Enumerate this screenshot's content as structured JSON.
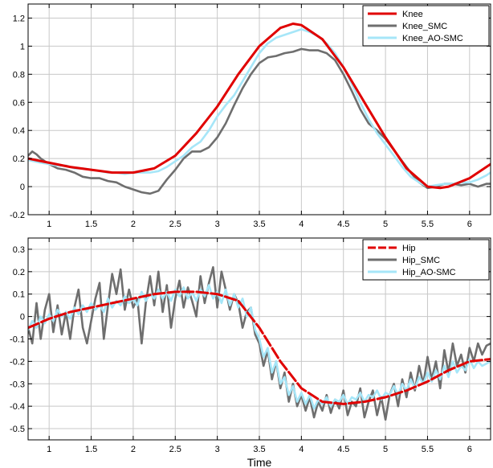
{
  "colors": {
    "reference": "#e00000",
    "smc": "#6e6e6e",
    "ao_smc": "#a6e6f8",
    "grid": "#c8c8c8",
    "axis": "#000000"
  },
  "chart_data": [
    {
      "type": "line",
      "xlabel": "",
      "ylabel": "",
      "xlim": [
        0.75,
        6.25
      ],
      "ylim": [
        -0.2,
        1.3
      ],
      "xticks": [
        1,
        1.5,
        2,
        2.5,
        3,
        3.5,
        4,
        4.5,
        5,
        5.5,
        6
      ],
      "xtick_labels": [
        "1",
        "1.5",
        "2",
        "2.5",
        "3",
        "3.5",
        "4",
        "4.5",
        "5",
        "5.5",
        "6"
      ],
      "yticks": [
        -0.2,
        0,
        0.2,
        0.4,
        0.6,
        0.8,
        1,
        1.2
      ],
      "ytick_labels": [
        "-0.2",
        "0",
        "0.2",
        "0.4",
        "0.6",
        "0.8",
        "1",
        "1.2"
      ],
      "grid": true,
      "legend_position": "top-right",
      "series": [
        {
          "name": "Knee",
          "color": "#e00000",
          "x": [
            0.75,
            1.0,
            1.25,
            1.5,
            1.75,
            2.0,
            2.25,
            2.5,
            2.75,
            3.0,
            3.25,
            3.5,
            3.75,
            3.9,
            4.0,
            4.25,
            4.5,
            4.75,
            5.0,
            5.25,
            5.5,
            5.65,
            5.75,
            6.0,
            6.25
          ],
          "y": [
            0.2,
            0.17,
            0.14,
            0.12,
            0.1,
            0.1,
            0.13,
            0.22,
            0.38,
            0.57,
            0.8,
            1.0,
            1.13,
            1.16,
            1.15,
            1.05,
            0.85,
            0.6,
            0.35,
            0.13,
            0.0,
            -0.01,
            0.0,
            0.06,
            0.16
          ]
        },
        {
          "name": "Knee_SMC",
          "color": "#6e6e6e",
          "x": [
            0.75,
            0.8,
            0.85,
            0.9,
            1.0,
            1.1,
            1.2,
            1.3,
            1.4,
            1.5,
            1.6,
            1.7,
            1.8,
            1.9,
            2.0,
            2.1,
            2.2,
            2.3,
            2.4,
            2.5,
            2.6,
            2.7,
            2.8,
            2.9,
            3.0,
            3.1,
            3.2,
            3.3,
            3.4,
            3.5,
            3.6,
            3.7,
            3.8,
            3.9,
            4.0,
            4.1,
            4.2,
            4.3,
            4.4,
            4.5,
            4.6,
            4.7,
            4.8,
            4.9,
            5.0,
            5.1,
            5.2,
            5.3,
            5.4,
            5.5,
            5.6,
            5.7,
            5.8,
            5.9,
            6.0,
            6.1,
            6.2,
            6.25
          ],
          "y": [
            0.22,
            0.25,
            0.23,
            0.2,
            0.16,
            0.13,
            0.12,
            0.1,
            0.07,
            0.06,
            0.06,
            0.04,
            0.03,
            0.0,
            -0.02,
            -0.04,
            -0.05,
            -0.03,
            0.05,
            0.12,
            0.2,
            0.25,
            0.25,
            0.28,
            0.35,
            0.45,
            0.58,
            0.7,
            0.8,
            0.88,
            0.92,
            0.93,
            0.95,
            0.96,
            0.98,
            0.97,
            0.97,
            0.95,
            0.9,
            0.8,
            0.68,
            0.55,
            0.45,
            0.4,
            0.34,
            0.26,
            0.18,
            0.1,
            0.03,
            -0.01,
            0.0,
            0.02,
            0.02,
            0.01,
            0.02,
            0.0,
            0.02,
            0.02
          ]
        },
        {
          "name": "Knee_AO-SMC",
          "color": "#a6e6f8",
          "x": [
            0.75,
            0.9,
            1.0,
            1.1,
            1.2,
            1.3,
            1.4,
            1.5,
            1.6,
            1.7,
            1.8,
            1.9,
            2.0,
            2.1,
            2.2,
            2.3,
            2.4,
            2.5,
            2.6,
            2.7,
            2.8,
            2.9,
            3.0,
            3.1,
            3.2,
            3.3,
            3.4,
            3.5,
            3.6,
            3.7,
            3.8,
            3.9,
            4.0,
            4.1,
            4.2,
            4.3,
            4.4,
            4.5,
            4.6,
            4.7,
            4.8,
            4.9,
            5.0,
            5.1,
            5.2,
            5.3,
            5.4,
            5.5,
            5.6,
            5.7,
            5.8,
            5.9,
            6.0,
            6.1,
            6.2,
            6.25
          ],
          "y": [
            0.19,
            0.17,
            0.16,
            0.15,
            0.15,
            0.13,
            0.13,
            0.12,
            0.11,
            0.1,
            0.1,
            0.09,
            0.1,
            0.1,
            0.1,
            0.11,
            0.14,
            0.18,
            0.22,
            0.28,
            0.32,
            0.4,
            0.5,
            0.58,
            0.65,
            0.75,
            0.85,
            0.95,
            1.02,
            1.06,
            1.08,
            1.1,
            1.12,
            1.1,
            1.07,
            1.02,
            0.95,
            0.85,
            0.73,
            0.6,
            0.48,
            0.38,
            0.3,
            0.22,
            0.14,
            0.07,
            0.03,
            0.0,
            0.01,
            0.02,
            0.02,
            0.03,
            0.03,
            0.05,
            0.08,
            0.1
          ]
        }
      ]
    },
    {
      "type": "line",
      "xlabel": "Time",
      "ylabel": "",
      "xlim": [
        0.75,
        6.25
      ],
      "ylim": [
        -0.55,
        0.35
      ],
      "xticks": [
        1,
        1.5,
        2,
        2.5,
        3,
        3.5,
        4,
        4.5,
        5,
        5.5,
        6
      ],
      "xtick_labels": [
        "1",
        "1.5",
        "2",
        "2.5",
        "3",
        "3.5",
        "4",
        "4.5",
        "5",
        "5.5",
        "6"
      ],
      "yticks": [
        -0.5,
        -0.4,
        -0.3,
        -0.2,
        -0.1,
        0,
        0.1,
        0.2,
        0.3
      ],
      "ytick_labels": [
        "-0.5",
        "-0.4",
        "-0.3",
        "-0.2",
        "-0.1",
        "0",
        "0.1",
        "0.2",
        "0.3"
      ],
      "grid": true,
      "legend_position": "top-right",
      "series": [
        {
          "name": "Hip",
          "color": "#e00000",
          "x": [
            0.75,
            1.0,
            1.25,
            1.5,
            1.75,
            2.0,
            2.25,
            2.5,
            2.75,
            3.0,
            3.25,
            3.5,
            3.75,
            4.0,
            4.25,
            4.5,
            4.75,
            5.0,
            5.25,
            5.5,
            5.75,
            6.0,
            6.25
          ],
          "y": [
            -0.05,
            -0.01,
            0.02,
            0.04,
            0.06,
            0.08,
            0.1,
            0.11,
            0.11,
            0.1,
            0.07,
            -0.05,
            -0.2,
            -0.32,
            -0.38,
            -0.39,
            -0.38,
            -0.36,
            -0.33,
            -0.29,
            -0.24,
            -0.2,
            -0.19
          ]
        },
        {
          "name": "Hip_SMC",
          "color": "#6e6e6e",
          "x": [
            0.75,
            0.8,
            0.85,
            0.9,
            0.95,
            1.0,
            1.05,
            1.1,
            1.15,
            1.2,
            1.25,
            1.3,
            1.35,
            1.4,
            1.45,
            1.5,
            1.55,
            1.6,
            1.65,
            1.7,
            1.75,
            1.8,
            1.85,
            1.9,
            1.95,
            2.0,
            2.05,
            2.1,
            2.15,
            2.2,
            2.25,
            2.3,
            2.35,
            2.4,
            2.45,
            2.5,
            2.55,
            2.6,
            2.65,
            2.7,
            2.75,
            2.8,
            2.85,
            2.9,
            2.95,
            3.0,
            3.05,
            3.1,
            3.15,
            3.2,
            3.25,
            3.3,
            3.35,
            3.4,
            3.45,
            3.5,
            3.55,
            3.6,
            3.65,
            3.7,
            3.75,
            3.8,
            3.85,
            3.9,
            3.95,
            4.0,
            4.05,
            4.1,
            4.15,
            4.2,
            4.25,
            4.3,
            4.35,
            4.4,
            4.45,
            4.5,
            4.55,
            4.6,
            4.65,
            4.7,
            4.75,
            4.8,
            4.85,
            4.9,
            4.95,
            5.0,
            5.05,
            5.1,
            5.15,
            5.2,
            5.25,
            5.3,
            5.35,
            5.4,
            5.45,
            5.5,
            5.55,
            5.6,
            5.65,
            5.7,
            5.75,
            5.8,
            5.85,
            5.9,
            5.95,
            6.0,
            6.05,
            6.1,
            6.15,
            6.2,
            6.25
          ],
          "y": [
            -0.05,
            -0.12,
            0.06,
            -0.1,
            0.03,
            0.1,
            -0.07,
            0.05,
            -0.08,
            0.02,
            -0.1,
            0.04,
            0.12,
            -0.05,
            -0.12,
            -0.02,
            0.08,
            0.15,
            -0.1,
            0.05,
            0.19,
            0.1,
            0.21,
            0.03,
            0.12,
            0.04,
            0.08,
            -0.12,
            0.06,
            0.18,
            0.05,
            0.2,
            0.02,
            0.14,
            -0.05,
            0.08,
            0.16,
            0.04,
            0.13,
            0.07,
            0.0,
            0.18,
            0.06,
            0.15,
            0.22,
            0.04,
            0.2,
            0.12,
            0.03,
            0.1,
            0.06,
            -0.05,
            0.02,
            0.04,
            -0.08,
            -0.12,
            -0.22,
            -0.15,
            -0.28,
            -0.2,
            -0.32,
            -0.25,
            -0.38,
            -0.3,
            -0.4,
            -0.35,
            -0.42,
            -0.36,
            -0.45,
            -0.38,
            -0.42,
            -0.35,
            -0.43,
            -0.37,
            -0.41,
            -0.33,
            -0.44,
            -0.38,
            -0.4,
            -0.32,
            -0.45,
            -0.38,
            -0.33,
            -0.44,
            -0.36,
            -0.46,
            -0.35,
            -0.3,
            -0.4,
            -0.28,
            -0.36,
            -0.25,
            -0.33,
            -0.22,
            -0.3,
            -0.18,
            -0.28,
            -0.2,
            -0.32,
            -0.15,
            -0.25,
            -0.12,
            -0.22,
            -0.17,
            -0.25,
            -0.14,
            -0.2,
            -0.12,
            -0.17,
            -0.13,
            -0.12
          ]
        },
        {
          "name": "Hip_AO-SMC",
          "color": "#a6e6f8",
          "x": [
            0.75,
            0.8,
            0.85,
            0.9,
            0.95,
            1.0,
            1.05,
            1.1,
            1.15,
            1.2,
            1.25,
            1.3,
            1.35,
            1.4,
            1.45,
            1.5,
            1.55,
            1.6,
            1.65,
            1.7,
            1.75,
            1.8,
            1.85,
            1.9,
            1.95,
            2.0,
            2.05,
            2.1,
            2.15,
            2.2,
            2.25,
            2.3,
            2.35,
            2.4,
            2.45,
            2.5,
            2.55,
            2.6,
            2.65,
            2.7,
            2.75,
            2.8,
            2.85,
            2.9,
            2.95,
            3.0,
            3.05,
            3.1,
            3.15,
            3.2,
            3.25,
            3.3,
            3.35,
            3.4,
            3.45,
            3.5,
            3.55,
            3.6,
            3.65,
            3.7,
            3.75,
            3.8,
            3.85,
            3.9,
            3.95,
            4.0,
            4.05,
            4.1,
            4.15,
            4.2,
            4.25,
            4.3,
            4.35,
            4.4,
            4.45,
            4.5,
            4.55,
            4.6,
            4.65,
            4.7,
            4.75,
            4.8,
            4.85,
            4.9,
            4.95,
            5.0,
            5.05,
            5.1,
            5.15,
            5.2,
            5.25,
            5.3,
            5.35,
            5.4,
            5.45,
            5.5,
            5.55,
            5.6,
            5.65,
            5.7,
            5.75,
            5.8,
            5.85,
            5.9,
            5.95,
            6.0,
            6.05,
            6.1,
            6.15,
            6.2,
            6.25
          ],
          "y": [
            -0.06,
            -0.02,
            -0.05,
            0.0,
            -0.03,
            0.01,
            -0.02,
            0.03,
            0.0,
            0.02,
            -0.01,
            0.04,
            0.01,
            0.05,
            0.02,
            0.06,
            0.03,
            0.05,
            0.02,
            0.08,
            0.04,
            0.07,
            0.05,
            0.09,
            0.06,
            0.08,
            0.05,
            0.11,
            0.07,
            0.1,
            0.08,
            0.12,
            0.08,
            0.11,
            0.07,
            0.12,
            0.09,
            0.13,
            0.08,
            0.11,
            0.07,
            0.12,
            0.09,
            0.14,
            0.08,
            0.11,
            0.06,
            0.12,
            0.05,
            0.1,
            0.04,
            0.08,
            0.0,
            0.04,
            -0.06,
            -0.1,
            -0.18,
            -0.14,
            -0.25,
            -0.2,
            -0.3,
            -0.27,
            -0.35,
            -0.31,
            -0.38,
            -0.34,
            -0.39,
            -0.35,
            -0.41,
            -0.37,
            -0.39,
            -0.36,
            -0.4,
            -0.37,
            -0.38,
            -0.35,
            -0.39,
            -0.36,
            -0.37,
            -0.34,
            -0.38,
            -0.35,
            -0.36,
            -0.33,
            -0.37,
            -0.34,
            -0.35,
            -0.31,
            -0.35,
            -0.3,
            -0.33,
            -0.28,
            -0.32,
            -0.27,
            -0.3,
            -0.25,
            -0.29,
            -0.24,
            -0.28,
            -0.22,
            -0.27,
            -0.2,
            -0.25,
            -0.22,
            -0.24,
            -0.19,
            -0.23,
            -0.2,
            -0.22,
            -0.21,
            -0.2
          ]
        }
      ]
    }
  ]
}
